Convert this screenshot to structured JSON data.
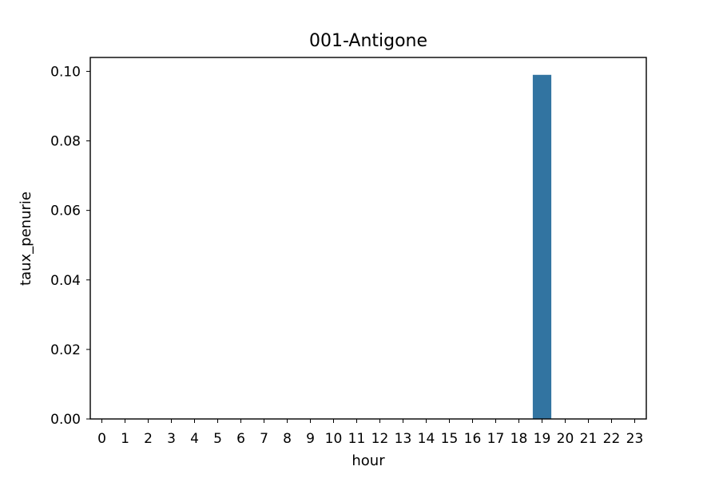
{
  "chart_data": {
    "type": "bar",
    "title": "001-Antigone",
    "xlabel": "hour",
    "ylabel": "taux_penurie",
    "categories": [
      "0",
      "1",
      "2",
      "3",
      "4",
      "5",
      "6",
      "7",
      "8",
      "9",
      "10",
      "11",
      "12",
      "13",
      "14",
      "15",
      "16",
      "17",
      "18",
      "19",
      "20",
      "21",
      "22",
      "23"
    ],
    "values": [
      0,
      0,
      0,
      0,
      0,
      0,
      0,
      0,
      0,
      0,
      0,
      0,
      0,
      0,
      0,
      0,
      0,
      0,
      0,
      0.099,
      0,
      0,
      0,
      0
    ],
    "ylim": [
      0,
      0.104
    ],
    "yticks": [
      0.0,
      0.02,
      0.04,
      0.06,
      0.08,
      0.1
    ],
    "ytick_labels": [
      "0.00",
      "0.02",
      "0.04",
      "0.06",
      "0.08",
      "0.10"
    ],
    "bar_color": "#3274a1",
    "grid": false,
    "legend": "none"
  }
}
